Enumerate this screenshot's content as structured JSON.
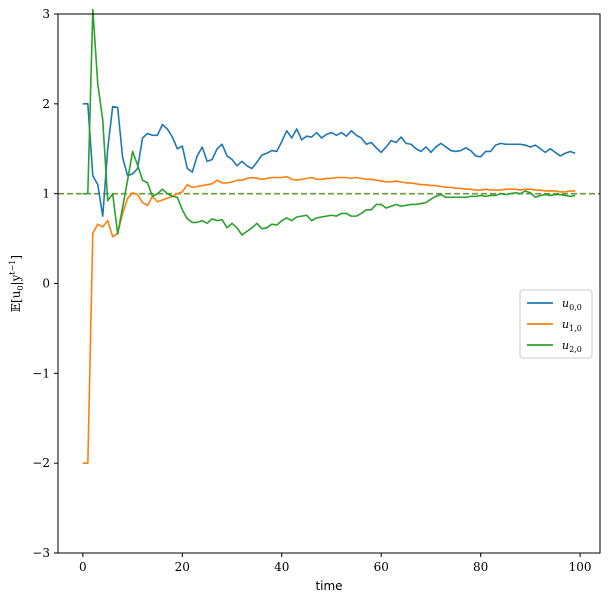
{
  "chart_data": {
    "type": "line",
    "xlabel": "time",
    "ylabel": "E[u_0|y^{t-1}]",
    "ylabel_main": "𝔼[u",
    "ylabel_sub": "0",
    "ylabel_mid": "|y",
    "ylabel_sup": "t−1",
    "ylabel_end": "]",
    "xlim": [
      -5,
      104
    ],
    "ylim": [
      -3,
      3
    ],
    "xticks": [
      0,
      20,
      40,
      60,
      80,
      100
    ],
    "yticks": [
      -3,
      -2,
      -1,
      0,
      1,
      2,
      3
    ],
    "xtick_labels": [
      "0",
      "20",
      "40",
      "60",
      "80",
      "100"
    ],
    "ytick_labels": [
      "−3",
      "−2",
      "−1",
      "0",
      "1",
      "2",
      "3"
    ],
    "grid": false,
    "legend_placement": "center-right",
    "reference_line": {
      "y": 1.0,
      "style": "dashed",
      "color": "#6a9a3e"
    },
    "series": [
      {
        "name": "u_{0,0}",
        "label_base": "u",
        "label_sub": "0,0",
        "color": "#1f77b4",
        "values": [
          2.0,
          2.0,
          1.2,
          1.1,
          0.75,
          1.5,
          1.97,
          1.96,
          1.4,
          1.2,
          1.22,
          1.28,
          1.62,
          1.67,
          1.65,
          1.65,
          1.77,
          1.72,
          1.63,
          1.5,
          1.53,
          1.28,
          1.24,
          1.42,
          1.52,
          1.36,
          1.38,
          1.5,
          1.55,
          1.42,
          1.38,
          1.31,
          1.36,
          1.31,
          1.28,
          1.35,
          1.43,
          1.45,
          1.48,
          1.47,
          1.58,
          1.7,
          1.62,
          1.72,
          1.6,
          1.64,
          1.63,
          1.68,
          1.62,
          1.66,
          1.68,
          1.65,
          1.68,
          1.64,
          1.7,
          1.65,
          1.62,
          1.55,
          1.57,
          1.51,
          1.46,
          1.52,
          1.59,
          1.57,
          1.63,
          1.56,
          1.55,
          1.5,
          1.47,
          1.52,
          1.46,
          1.52,
          1.56,
          1.52,
          1.48,
          1.47,
          1.48,
          1.51,
          1.48,
          1.42,
          1.41,
          1.47,
          1.47,
          1.54,
          1.56,
          1.55,
          1.55,
          1.55,
          1.55,
          1.54,
          1.52,
          1.54,
          1.5,
          1.46,
          1.5,
          1.46,
          1.42,
          1.45,
          1.47,
          1.45
        ]
      },
      {
        "name": "u_{1,0}",
        "label_base": "u",
        "label_sub": "1,0",
        "color": "#ff7f0e",
        "values": [
          -2.0,
          -2.0,
          0.56,
          0.66,
          0.63,
          0.7,
          0.52,
          0.56,
          0.78,
          0.95,
          1.01,
          0.99,
          0.9,
          0.87,
          0.97,
          0.91,
          0.93,
          0.95,
          0.97,
          1.0,
          1.02,
          1.1,
          1.07,
          1.08,
          1.09,
          1.1,
          1.11,
          1.15,
          1.12,
          1.12,
          1.13,
          1.15,
          1.15,
          1.17,
          1.18,
          1.17,
          1.16,
          1.17,
          1.18,
          1.18,
          1.18,
          1.19,
          1.16,
          1.15,
          1.16,
          1.17,
          1.18,
          1.16,
          1.16,
          1.17,
          1.17,
          1.18,
          1.18,
          1.18,
          1.17,
          1.18,
          1.17,
          1.16,
          1.16,
          1.15,
          1.14,
          1.13,
          1.13,
          1.14,
          1.13,
          1.12,
          1.12,
          1.11,
          1.1,
          1.1,
          1.09,
          1.09,
          1.08,
          1.07,
          1.07,
          1.06,
          1.06,
          1.05,
          1.05,
          1.04,
          1.04,
          1.05,
          1.04,
          1.04,
          1.04,
          1.05,
          1.05,
          1.05,
          1.04,
          1.05,
          1.05,
          1.04,
          1.04,
          1.03,
          1.03,
          1.03,
          1.02,
          1.02,
          1.03,
          1.03
        ]
      },
      {
        "name": "u_{2,0}",
        "label_base": "u",
        "label_sub": "2,0",
        "color": "#2ca02c",
        "values": [
          1.0,
          1.0,
          3.05,
          2.22,
          1.82,
          0.92,
          1.0,
          0.55,
          0.85,
          1.15,
          1.47,
          1.32,
          1.15,
          1.12,
          0.97,
          1.0,
          1.05,
          1.0,
          0.97,
          0.96,
          0.82,
          0.72,
          0.68,
          0.68,
          0.7,
          0.67,
          0.72,
          0.7,
          0.71,
          0.62,
          0.67,
          0.62,
          0.54,
          0.58,
          0.62,
          0.67,
          0.61,
          0.62,
          0.66,
          0.65,
          0.7,
          0.73,
          0.7,
          0.74,
          0.75,
          0.76,
          0.7,
          0.73,
          0.74,
          0.75,
          0.76,
          0.75,
          0.78,
          0.78,
          0.75,
          0.75,
          0.78,
          0.82,
          0.82,
          0.88,
          0.88,
          0.84,
          0.86,
          0.88,
          0.86,
          0.87,
          0.88,
          0.88,
          0.89,
          0.9,
          0.94,
          0.97,
          0.99,
          0.96,
          0.96,
          0.96,
          0.96,
          0.96,
          0.97,
          0.97,
          0.98,
          0.97,
          0.98,
          0.98,
          1.0,
          0.99,
          1.0,
          1.01,
          1.0,
          1.03,
          1.01,
          0.96,
          0.98,
          0.99,
          0.98,
          0.99,
          0.99,
          0.98,
          0.97,
          0.98
        ]
      }
    ]
  }
}
